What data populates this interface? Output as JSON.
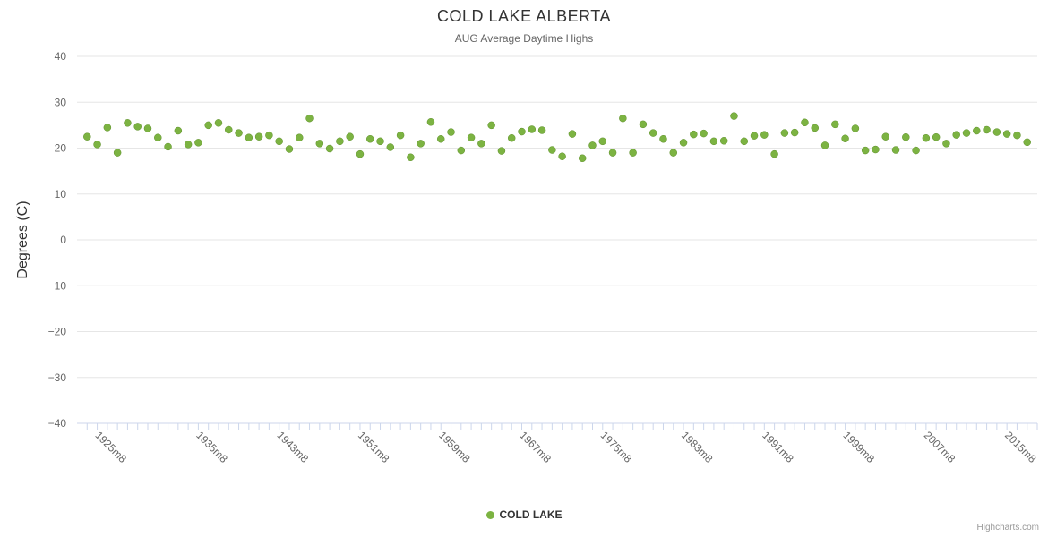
{
  "title": "COLD LAKE ALBERTA",
  "subtitle": "AUG Average Daytime Highs",
  "y_axis_title": "Degrees (C)",
  "legend": {
    "label": "COLD LAKE"
  },
  "credits": "Highcharts.com",
  "colors": {
    "point": "#7cb342",
    "point_stroke": "#5e8f2a",
    "grid": "#e6e6e6",
    "axis_line": "#ccd6eb",
    "tick": "#ccd6eb",
    "axis_label": "#666666",
    "title_text": "#333333"
  },
  "chart_data": {
    "type": "scatter",
    "title": "COLD LAKE ALBERTA",
    "subtitle": "AUG Average Daytime Highs",
    "xlabel": "",
    "ylabel": "Degrees (C)",
    "ylim": [
      -40,
      40
    ],
    "xlim": [
      1923,
      2018
    ],
    "grid": true,
    "legend_position": "bottom",
    "y_ticks": [
      40,
      30,
      20,
      10,
      0,
      -10,
      -20,
      -30,
      -40
    ],
    "x_tick_years": [
      1925,
      1935,
      1943,
      1951,
      1959,
      1967,
      1975,
      1983,
      1991,
      1999,
      2007,
      2015
    ],
    "x_tick_labels": [
      "1925m8",
      "1935m8",
      "1943m8",
      "1951m8",
      "1959m8",
      "1967m8",
      "1975m8",
      "1983m8",
      "1991m8",
      "1999m8",
      "2007m8",
      "2015m8"
    ],
    "series": [
      {
        "name": "COLD LAKE",
        "start_year": 1924,
        "month_suffix": "m8",
        "values": [
          22.5,
          20.8,
          24.5,
          19.0,
          25.5,
          24.7,
          24.3,
          22.3,
          20.3,
          23.8,
          20.8,
          21.2,
          25.0,
          25.5,
          24.0,
          23.3,
          22.3,
          22.5,
          22.8,
          21.5,
          19.8,
          22.3,
          26.5,
          21.0,
          19.9,
          21.5,
          22.5,
          18.7,
          22.0,
          21.5,
          20.2,
          22.8,
          18.0,
          21.0,
          25.7,
          22.0,
          23.5,
          19.5,
          22.3,
          21.0,
          25.0,
          19.4,
          22.2,
          23.6,
          24.1,
          23.9,
          19.6,
          18.2,
          23.1,
          17.8,
          20.6,
          21.5,
          19.0,
          26.5,
          19.0,
          25.2,
          23.3,
          22.0,
          19.0,
          21.2,
          23.0,
          23.2,
          21.5,
          21.6,
          27.0,
          21.5,
          22.7,
          22.9,
          18.7,
          23.3,
          23.4,
          25.6,
          24.4,
          20.6,
          25.2,
          22.1,
          24.3,
          19.5,
          19.7,
          22.5,
          19.6,
          22.4,
          19.5,
          22.2,
          22.4,
          21.0,
          22.9,
          23.3,
          23.8,
          24.0,
          23.5,
          23.1,
          22.8,
          21.3
        ]
      }
    ]
  }
}
